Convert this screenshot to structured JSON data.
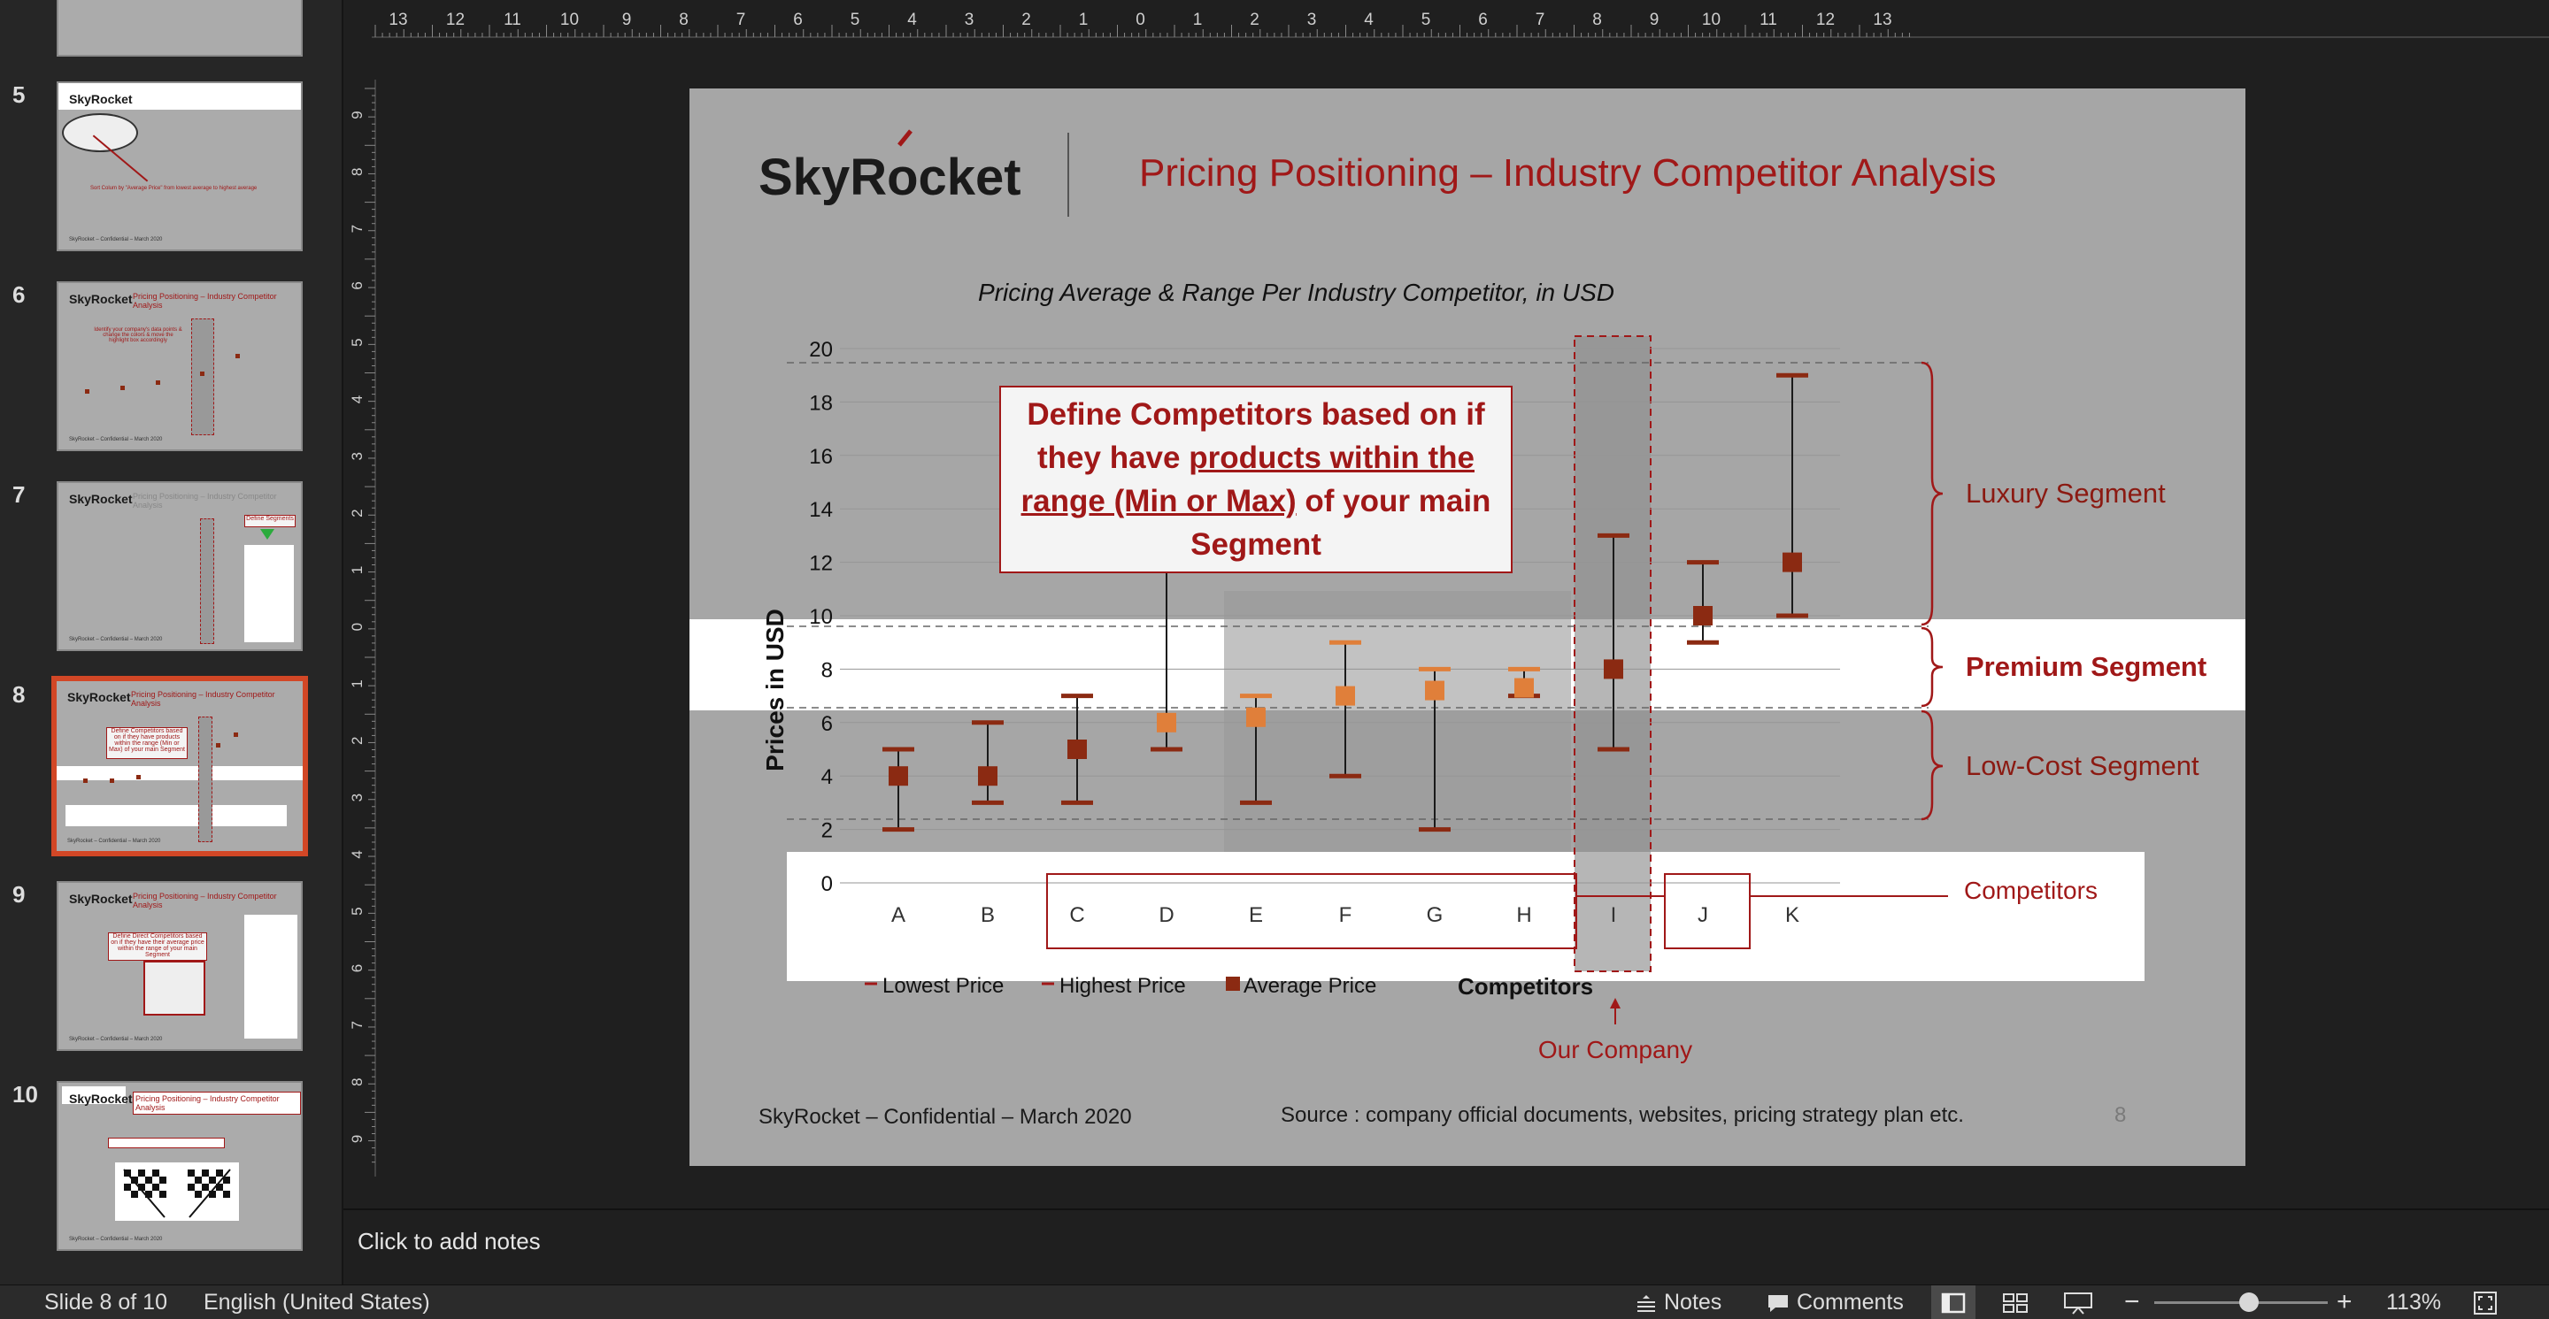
{
  "thumbnails": [
    {
      "number": "5"
    },
    {
      "number": "6"
    },
    {
      "number": "7"
    },
    {
      "number": "8"
    },
    {
      "number": "9"
    },
    {
      "number": "10"
    }
  ],
  "thumb_text": {
    "logo": "SkyRocket",
    "title": "Pricing Positioning – Industry Competitor Analysis"
  },
  "ruler_top": [
    "13",
    "12",
    "11",
    "10",
    "9",
    "8",
    "7",
    "6",
    "5",
    "4",
    "3",
    "2",
    "1",
    "0",
    "1",
    "2",
    "3",
    "4",
    "5",
    "6",
    "7",
    "8",
    "9",
    "10",
    "11",
    "12",
    "13"
  ],
  "ruler_left": [
    "9",
    "8",
    "7",
    "6",
    "5",
    "4",
    "3",
    "2",
    "1",
    "0",
    "1",
    "2",
    "3",
    "4",
    "5",
    "6",
    "7",
    "8",
    "9"
  ],
  "slide": {
    "logo": "SkyRocket",
    "title": "Pricing Positioning – Industry Competitor Analysis",
    "callout_plain_1": "Define Competitors based on if they have ",
    "callout_underlined": "products within the range (Min or Max)",
    "callout_plain_2": " of your main Segment",
    "segments": {
      "luxury": "Luxury Segment",
      "premium": "Premium Segment",
      "lowcost": "Low-Cost Segment",
      "competitors": "Competitors"
    },
    "our_company": "Our Company",
    "footer_left": "SkyRocket – Confidential – March 2020",
    "footer_source": "Source : company official documents, websites, pricing strategy plan etc.",
    "page_number": "8"
  },
  "chart_data": {
    "type": "scatter",
    "title": "Pricing Average & Range Per Industry Competitor, in USD",
    "xlabel": "Competitors",
    "ylabel": "Prices in USD",
    "ylim": [
      0,
      20
    ],
    "yticks": [
      0,
      2,
      4,
      6,
      8,
      10,
      12,
      14,
      16,
      18,
      20
    ],
    "categories": [
      "A",
      "B",
      "C",
      "D",
      "E",
      "F",
      "G",
      "H",
      "I",
      "J",
      "K"
    ],
    "series": [
      {
        "name": "Lowest Price",
        "values": [
          2,
          3,
          3,
          5,
          3,
          4,
          2,
          7,
          5,
          9,
          10
        ]
      },
      {
        "name": "Highest Price",
        "values": [
          5,
          6,
          7,
          12,
          7,
          9,
          8,
          8,
          13,
          12,
          19
        ]
      },
      {
        "name": "Average Price",
        "values": [
          4,
          4,
          5,
          6,
          6.2,
          7,
          7.2,
          7.3,
          8,
          10,
          12
        ]
      }
    ],
    "legend_position": "bottom",
    "colors": {
      "dark": "#8b2a12",
      "light": "#e07f3a",
      "accent": "#a01818"
    }
  },
  "status": {
    "slide_info": "Slide 8 of 10",
    "language": "English (United States)",
    "notes_btn": "Notes",
    "comments_btn": "Comments",
    "zoom": "113%"
  },
  "notes_placeholder": "Click to add notes"
}
